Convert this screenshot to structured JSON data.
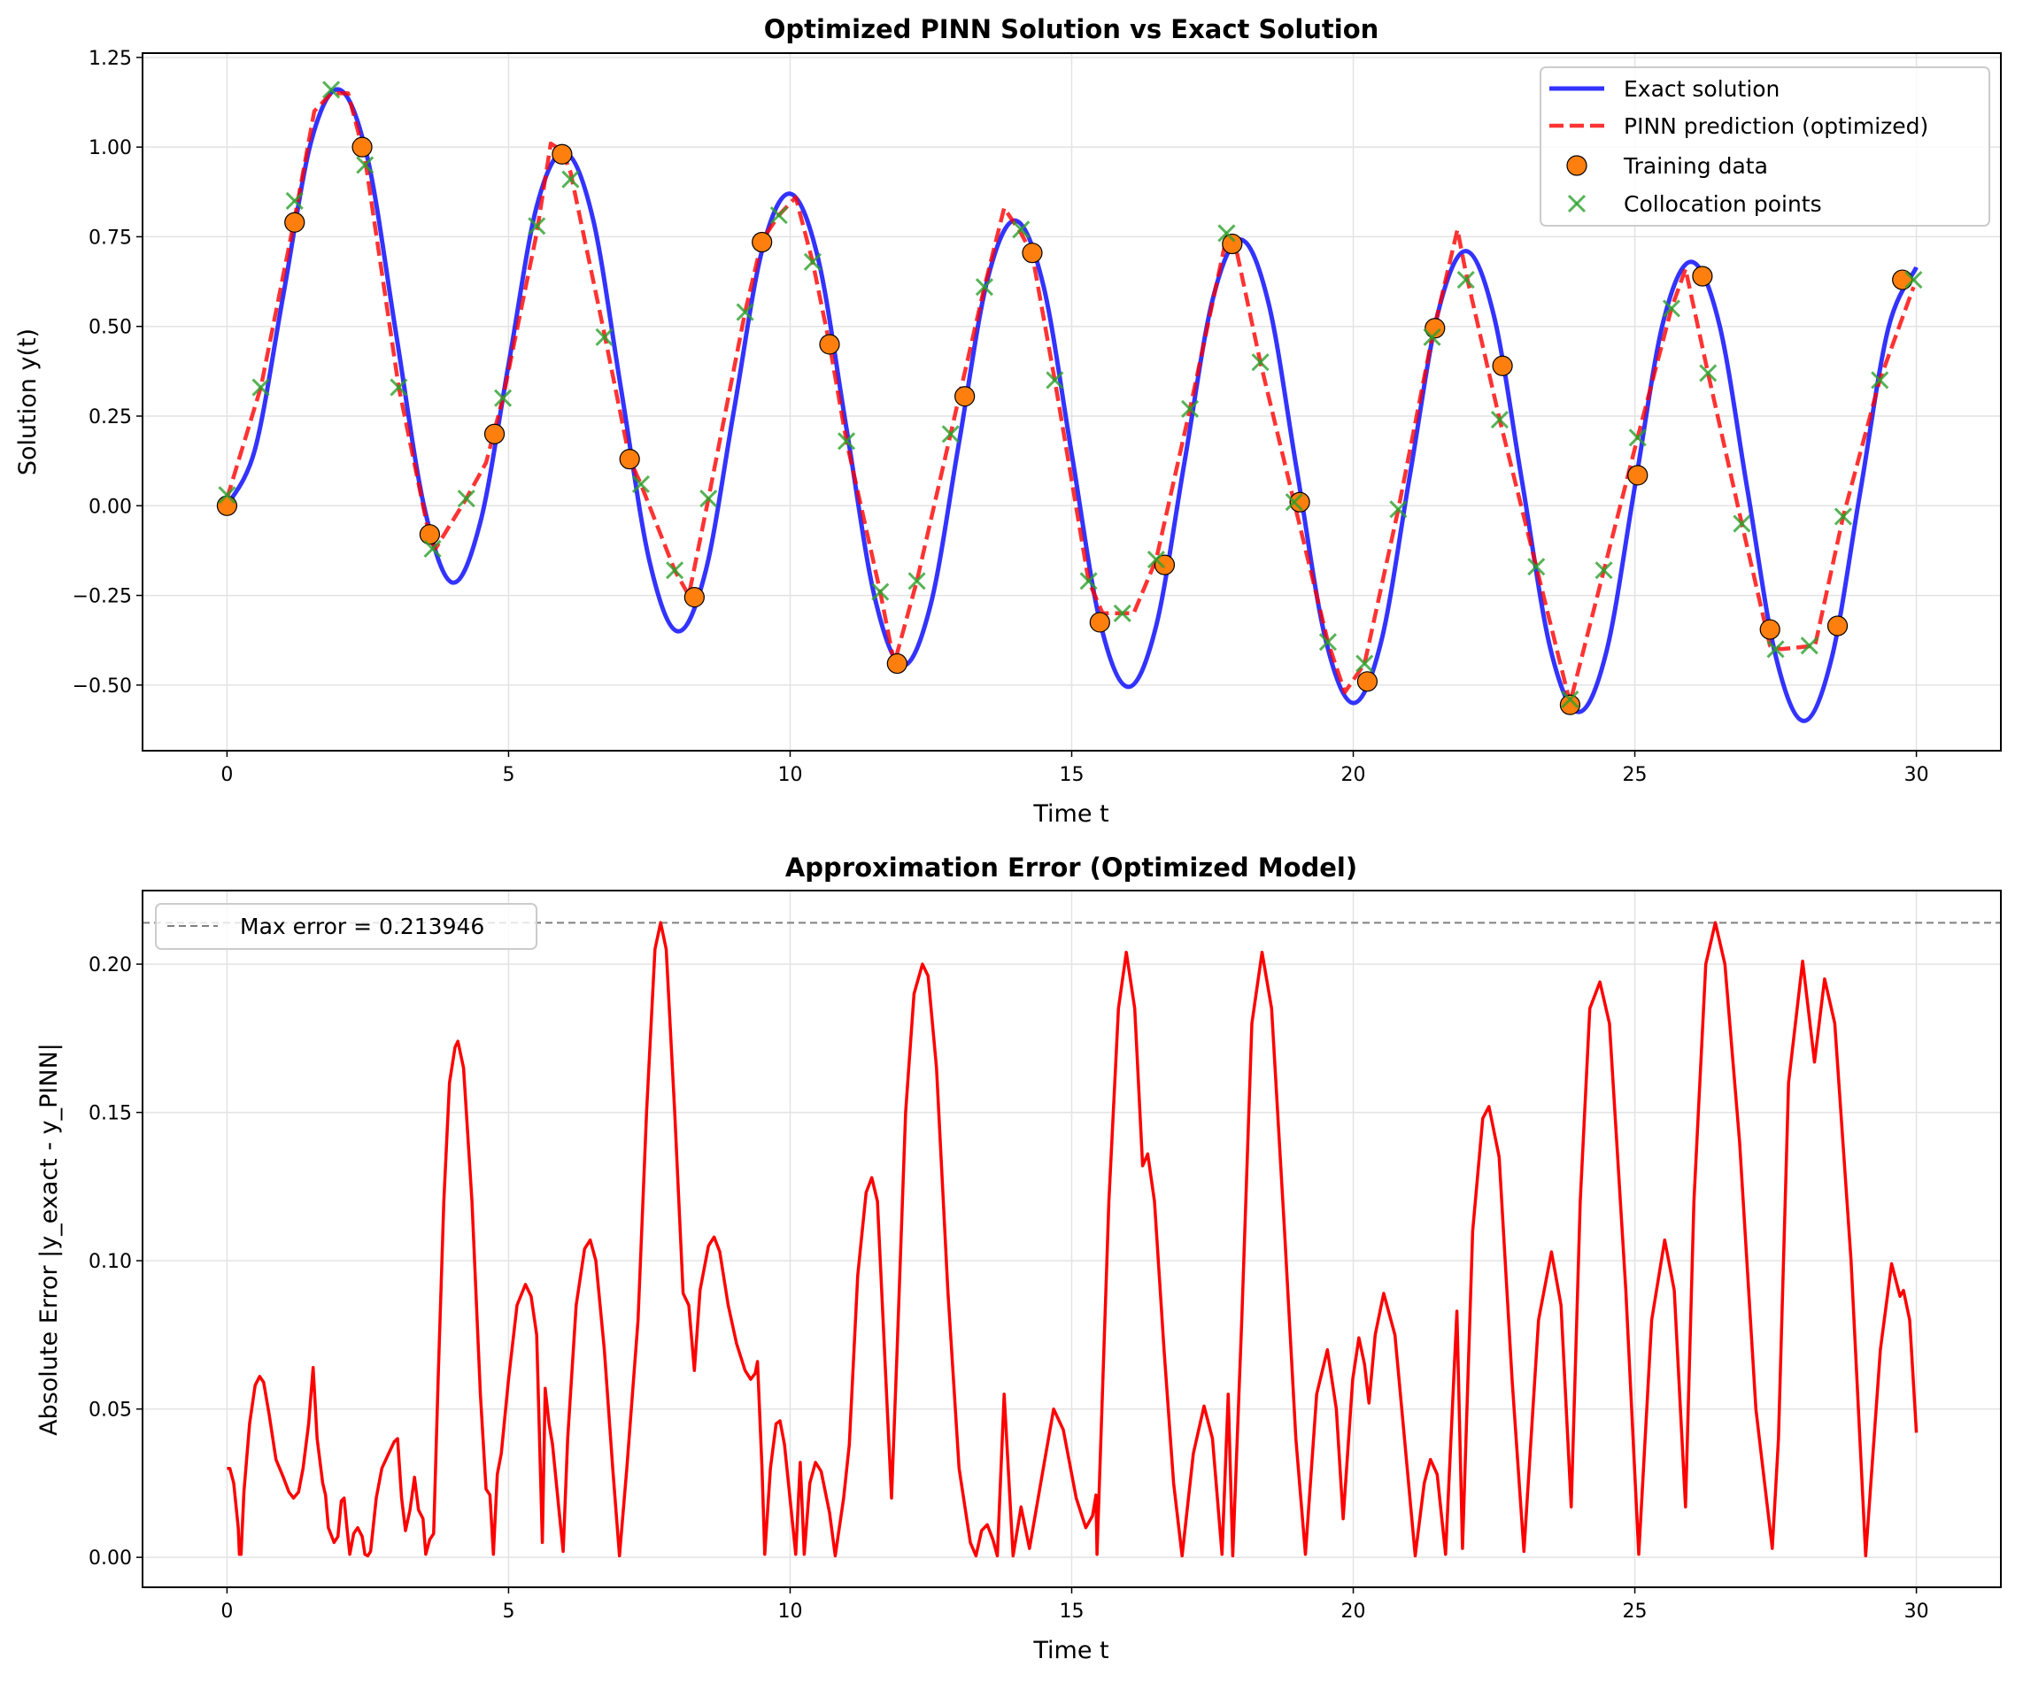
{
  "chart_data": [
    {
      "type": "line",
      "title": "Optimized PINN Solution vs Exact Solution",
      "xlabel": "Time t",
      "ylabel": "Solution y(t)",
      "xlim": [
        -1.5,
        31.5
      ],
      "ylim": [
        -0.683,
        1.262
      ],
      "grid": true,
      "legend_position": "top-right",
      "xticks": [
        0,
        5,
        10,
        15,
        20,
        25,
        30
      ],
      "xtick_labels": [
        "0",
        "5",
        "10",
        "15",
        "20",
        "25",
        "30"
      ],
      "yticks": [
        -0.5,
        -0.25,
        0,
        0.25,
        0.5,
        0.75,
        1.0,
        1.25
      ],
      "ytick_labels": [
        "−0.50",
        "−0.25",
        "0.00",
        "0.25",
        "0.50",
        "0.75",
        "1.00",
        "1.25"
      ],
      "series": [
        {
          "name": "Exact solution",
          "style": "solid",
          "color": "#0000ff",
          "x": [
            0,
            0.5,
            1,
            1.5,
            2,
            2.5,
            3,
            3.5,
            4,
            4.5,
            5,
            5.5,
            6,
            6.5,
            7,
            7.5,
            8,
            8.5,
            9,
            9.5,
            10,
            10.5,
            11,
            11.5,
            12,
            12.5,
            13,
            13.5,
            14,
            14.5,
            15,
            15.5,
            16,
            16.5,
            17,
            17.5,
            18,
            18.5,
            19,
            19.5,
            20,
            20.5,
            21,
            21.5,
            22,
            22.5,
            23,
            23.5,
            24,
            24.5,
            25,
            25.5,
            26,
            26.5,
            27,
            27.5,
            28,
            28.5,
            29,
            29.5,
            30
          ],
          "y": [
            0,
            0.159,
            0.588,
            1.019,
            1.16,
            0.966,
            0.482,
            -0.002,
            -0.214,
            -0.045,
            0.394,
            0.835,
            0.985,
            0.799,
            0.323,
            -0.153,
            -0.35,
            -0.182,
            0.264,
            0.711,
            0.87,
            0.687,
            0.216,
            -0.254,
            -0.445,
            -0.273,
            0.177,
            0.628,
            0.795,
            0.612,
            0.145,
            -0.322,
            -0.505,
            -0.335,
            0.119,
            0.573,
            0.742,
            0.562,
            0.097,
            -0.367,
            -0.55,
            -0.376,
            0.08,
            0.535,
            0.71,
            0.528,
            0.065,
            -0.398,
            -0.575,
            -0.404,
            0.053,
            0.51,
            0.68,
            0.506,
            0.044,
            -0.418,
            -0.6,
            -0.422,
            0.036,
            0.494,
            0.665
          ]
        },
        {
          "name": "PINN prediction (optimized)",
          "style": "dashed",
          "color": "#ff0000",
          "x": [
            0,
            0.6,
            1.2,
            1.55,
            1.85,
            2.15,
            2.45,
            3.05,
            3.6,
            3.7,
            4.25,
            4.6,
            4.9,
            5.5,
            5.75,
            5.95,
            6.1,
            6.7,
            7.15,
            7.35,
            7.95,
            8.2,
            8.55,
            9.2,
            9.5,
            9.8,
            10.1,
            10.4,
            10.7,
            11.0,
            11.6,
            11.85,
            12.25,
            12.85,
            13.45,
            13.8,
            14.1,
            14.3,
            14.7,
            15.3,
            15.55,
            15.9,
            16.1,
            16.5,
            17.1,
            17.75,
            17.9,
            18.35,
            18.95,
            19.55,
            19.85,
            20.2,
            20.8,
            21.4,
            21.85,
            22.0,
            22.6,
            23.25,
            23.85,
            24.45,
            25.05,
            25.65,
            25.9,
            26.3,
            26.9,
            27.4,
            27.6,
            28.2,
            28.7,
            29.35,
            29.95
          ],
          "y": [
            0.02,
            0.33,
            0.8,
            1.1,
            1.15,
            1.15,
            0.97,
            0.33,
            -0.09,
            -0.12,
            0.02,
            0.12,
            0.3,
            0.76,
            1.01,
            0.99,
            0.93,
            0.48,
            0.13,
            0.06,
            -0.18,
            -0.25,
            0.02,
            0.54,
            0.74,
            0.81,
            0.86,
            0.68,
            0.45,
            0.18,
            -0.24,
            -0.44,
            -0.21,
            0.2,
            0.61,
            0.83,
            0.76,
            0.7,
            0.35,
            -0.21,
            -0.3,
            -0.3,
            -0.3,
            -0.15,
            0.27,
            0.75,
            0.73,
            0.4,
            0.01,
            -0.38,
            -0.52,
            -0.44,
            -0.01,
            0.47,
            0.77,
            0.65,
            0.24,
            -0.17,
            -0.55,
            -0.18,
            0.19,
            0.55,
            0.66,
            0.37,
            -0.05,
            -0.39,
            -0.4,
            -0.39,
            -0.03,
            0.35,
            0.61
          ]
        },
        {
          "name": "Training data",
          "style": "scatter-circle",
          "color": "#ff7f0e",
          "x": [
            0,
            1.2,
            2.4,
            3.6,
            4.75,
            5.95,
            7.15,
            8.3,
            9.5,
            10.7,
            11.9,
            13.1,
            14.3,
            15.5,
            16.65,
            17.85,
            19.05,
            20.25,
            21.45,
            22.65,
            23.85,
            25.05,
            26.2,
            27.4,
            28.6,
            29.75
          ],
          "y": [
            0,
            0.79,
            1.0,
            -0.08,
            0.2,
            0.98,
            0.13,
            -0.255,
            0.735,
            0.45,
            -0.44,
            0.305,
            0.705,
            -0.325,
            -0.165,
            0.73,
            0.01,
            -0.49,
            0.495,
            0.39,
            -0.555,
            0.085,
            0.64,
            -0.345,
            -0.335,
            0.63
          ]
        },
        {
          "name": "Collocation points",
          "style": "scatter-x",
          "color": "#2ca02c",
          "x": [
            0,
            0.6,
            1.2,
            1.85,
            2.45,
            3.05,
            3.65,
            4.25,
            4.9,
            5.5,
            6.1,
            6.7,
            7.35,
            7.95,
            8.55,
            9.2,
            9.8,
            10.4,
            11.0,
            11.6,
            12.25,
            12.85,
            13.45,
            14.1,
            14.7,
            15.3,
            15.9,
            16.5,
            17.1,
            17.75,
            18.35,
            18.95,
            19.55,
            20.2,
            20.8,
            21.4,
            22.0,
            22.6,
            23.25,
            23.85,
            24.45,
            25.05,
            25.65,
            26.3,
            26.9,
            27.5,
            28.1,
            28.7,
            29.35,
            29.95
          ],
          "y": [
            0.03,
            0.33,
            0.85,
            1.16,
            0.95,
            0.33,
            -0.12,
            0.02,
            0.3,
            0.78,
            0.91,
            0.47,
            0.06,
            -0.18,
            0.02,
            0.54,
            0.81,
            0.68,
            0.18,
            -0.24,
            -0.21,
            0.2,
            0.61,
            0.77,
            0.35,
            -0.21,
            -0.3,
            -0.15,
            0.27,
            0.76,
            0.4,
            0.01,
            -0.38,
            -0.44,
            -0.01,
            0.47,
            0.63,
            0.24,
            -0.17,
            -0.54,
            -0.18,
            0.19,
            0.55,
            0.37,
            -0.05,
            -0.4,
            -0.39,
            -0.03,
            0.35,
            0.63
          ]
        }
      ]
    },
    {
      "type": "line",
      "title": "Approximation Error (Optimized Model)",
      "xlabel": "Time t",
      "ylabel": "Absolute Error |y_exact - y_PINN|",
      "xlim": [
        -1.5,
        31.5
      ],
      "ylim": [
        -0.0101,
        0.2248
      ],
      "grid": true,
      "legend_position": "top-left",
      "xticks": [
        0,
        5,
        10,
        15,
        20,
        25,
        30
      ],
      "xtick_labels": [
        "0",
        "5",
        "10",
        "15",
        "20",
        "25",
        "30"
      ],
      "yticks": [
        0,
        0.05,
        0.1,
        0.15,
        0.2
      ],
      "ytick_labels": [
        "0.00",
        "0.05",
        "0.10",
        "0.15",
        "0.20"
      ],
      "max_error": 0.213946,
      "max_error_label": "Max error = 0.213946",
      "series": [
        {
          "name": "Absolute error",
          "style": "solid",
          "color": "#ff0000",
          "x": [
            0,
            0.05,
            0.12,
            0.2,
            0.22,
            0.25,
            0.3,
            0.4,
            0.5,
            0.58,
            0.65,
            0.75,
            0.87,
            1.0,
            1.1,
            1.18,
            1.27,
            1.35,
            1.45,
            1.53,
            1.6,
            1.7,
            1.75,
            1.8,
            1.9,
            1.97,
            2.03,
            2.08,
            2.13,
            2.18,
            2.25,
            2.32,
            2.4,
            2.45,
            2.5,
            2.55,
            2.65,
            2.75,
            2.87,
            2.97,
            3.03,
            3.1,
            3.17,
            3.25,
            3.33,
            3.4,
            3.48,
            3.53,
            3.6,
            3.67,
            3.75,
            3.85,
            3.95,
            4.05,
            4.1,
            4.2,
            4.35,
            4.5,
            4.6,
            4.67,
            4.73,
            4.8,
            4.87,
            5.0,
            5.15,
            5.3,
            5.4,
            5.5,
            5.6,
            5.65,
            5.72,
            5.78,
            5.9,
            5.97,
            6.05,
            6.2,
            6.35,
            6.45,
            6.55,
            6.7,
            6.85,
            6.97,
            7.1,
            7.3,
            7.45,
            7.6,
            7.7,
            7.8,
            7.95,
            8.1,
            8.2,
            8.3,
            8.4,
            8.55,
            8.65,
            8.75,
            8.9,
            9.05,
            9.2,
            9.3,
            9.38,
            9.42,
            9.5,
            9.55,
            9.65,
            9.75,
            9.82,
            9.9,
            10.05,
            10.1,
            10.18,
            10.25,
            10.35,
            10.45,
            10.55,
            10.7,
            10.8,
            10.95,
            11.05,
            11.2,
            11.35,
            11.45,
            11.55,
            11.7,
            11.8,
            11.9,
            12.05,
            12.2,
            12.35,
            12.45,
            12.6,
            12.8,
            13.0,
            13.2,
            13.3,
            13.4,
            13.5,
            13.6,
            13.68,
            13.8,
            13.96,
            14.1,
            14.25,
            14.45,
            14.68,
            14.85,
            15.08,
            15.25,
            15.37,
            15.43,
            15.45,
            15.66,
            15.83,
            15.97,
            16.12,
            16.26,
            16.35,
            16.47,
            16.64,
            16.81,
            16.96,
            17.16,
            17.35,
            17.5,
            17.67,
            17.78,
            17.86,
            18.02,
            18.2,
            18.38,
            18.55,
            18.78,
            18.98,
            19.15,
            19.35,
            19.54,
            19.7,
            19.82,
            19.99,
            20.1,
            20.2,
            20.28,
            20.39,
            20.54,
            20.74,
            20.91,
            21.1,
            21.26,
            21.37,
            21.49,
            21.64,
            21.84,
            21.94,
            22.12,
            22.3,
            22.41,
            22.59,
            22.82,
            23.03,
            23.29,
            23.52,
            23.69,
            23.87,
            24.03,
            24.2,
            24.38,
            24.55,
            24.84,
            25.07,
            25.3,
            25.53,
            25.7,
            25.9,
            26.05,
            26.26,
            26.43,
            26.6,
            26.86,
            27.15,
            27.44,
            27.55,
            27.73,
            27.98,
            28.19,
            28.37,
            28.55,
            28.84,
            29.1,
            29.36,
            29.56,
            29.71,
            29.77,
            29.88,
            30.0
          ],
          "y": [
            0.03,
            0.03,
            0.025,
            0.01,
            0.001,
            0.001,
            0.022,
            0.045,
            0.058,
            0.061,
            0.059,
            0.048,
            0.033,
            0.027,
            0.022,
            0.02,
            0.022,
            0.03,
            0.045,
            0.064,
            0.04,
            0.025,
            0.021,
            0.01,
            0.005,
            0.007,
            0.019,
            0.02,
            0.01,
            0.001,
            0.008,
            0.01,
            0.007,
            0.001,
            0.0005,
            0.002,
            0.02,
            0.03,
            0.035,
            0.039,
            0.04,
            0.02,
            0.009,
            0.016,
            0.027,
            0.016,
            0.013,
            0.001,
            0.006,
            0.008,
            0.06,
            0.12,
            0.16,
            0.172,
            0.174,
            0.165,
            0.12,
            0.055,
            0.023,
            0.021,
            0.001,
            0.028,
            0.035,
            0.06,
            0.085,
            0.092,
            0.088,
            0.075,
            0.005,
            0.057,
            0.045,
            0.038,
            0.015,
            0.002,
            0.04,
            0.085,
            0.104,
            0.107,
            0.1,
            0.07,
            0.03,
            0.0005,
            0.03,
            0.08,
            0.15,
            0.205,
            0.214,
            0.205,
            0.15,
            0.089,
            0.085,
            0.063,
            0.09,
            0.105,
            0.108,
            0.103,
            0.085,
            0.072,
            0.063,
            0.06,
            0.062,
            0.066,
            0.03,
            0.001,
            0.03,
            0.045,
            0.046,
            0.038,
            0.01,
            0.001,
            0.032,
            0.001,
            0.025,
            0.032,
            0.029,
            0.015,
            0.0005,
            0.02,
            0.038,
            0.095,
            0.123,
            0.128,
            0.12,
            0.06,
            0.02,
            0.07,
            0.15,
            0.19,
            0.2,
            0.196,
            0.165,
            0.09,
            0.03,
            0.005,
            0.0005,
            0.009,
            0.011,
            0.006,
            0.0005,
            0.055,
            0.0005,
            0.017,
            0.003,
            0.025,
            0.05,
            0.043,
            0.02,
            0.01,
            0.014,
            0.021,
            0.001,
            0.12,
            0.185,
            0.204,
            0.185,
            0.132,
            0.136,
            0.12,
            0.07,
            0.025,
            0.0005,
            0.035,
            0.051,
            0.04,
            0.001,
            0.055,
            0.0005,
            0.08,
            0.18,
            0.204,
            0.185,
            0.11,
            0.04,
            0.001,
            0.055,
            0.07,
            0.05,
            0.013,
            0.06,
            0.074,
            0.065,
            0.052,
            0.075,
            0.089,
            0.075,
            0.04,
            0.0005,
            0.025,
            0.033,
            0.028,
            0.001,
            0.083,
            0.003,
            0.11,
            0.148,
            0.152,
            0.135,
            0.06,
            0.002,
            0.08,
            0.103,
            0.085,
            0.017,
            0.12,
            0.185,
            0.194,
            0.18,
            0.09,
            0.001,
            0.08,
            0.107,
            0.09,
            0.017,
            0.12,
            0.2,
            0.214,
            0.2,
            0.14,
            0.05,
            0.003,
            0.04,
            0.16,
            0.201,
            0.167,
            0.195,
            0.18,
            0.1,
            0.0005,
            0.07,
            0.099,
            0.088,
            0.09,
            0.08,
            0.042
          ]
        }
      ]
    }
  ]
}
